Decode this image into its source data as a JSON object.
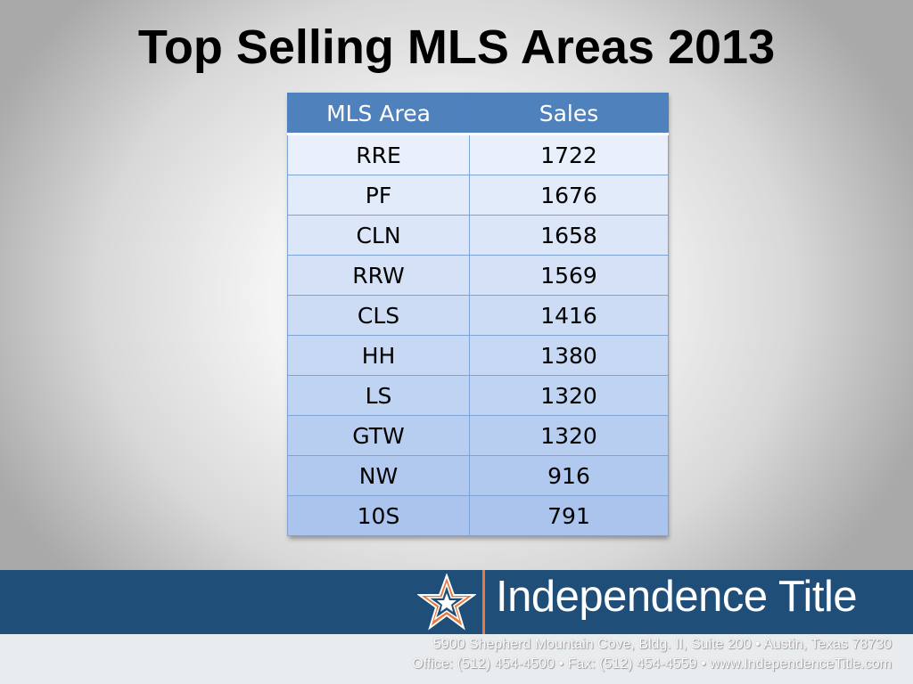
{
  "slide": {
    "title": "Top Selling MLS Areas 2013"
  },
  "table": {
    "headers": [
      "MLS Area",
      "Sales"
    ],
    "rows": [
      [
        "RRE",
        "1722"
      ],
      [
        "PF",
        "1676"
      ],
      [
        "CLN",
        "1658"
      ],
      [
        "RRW",
        "1569"
      ],
      [
        "CLS",
        "1416"
      ],
      [
        "HH",
        "1380"
      ],
      [
        "LS",
        "1320"
      ],
      [
        "GTW",
        "1320"
      ],
      [
        "NW",
        "916"
      ],
      [
        "10S",
        "791"
      ]
    ],
    "colors": {
      "header_bg": "#4f81bd",
      "header_text": "#ffffff",
      "row_gradient_top": "#e9f0fb",
      "row_gradient_bottom": "#aac4ee",
      "border": "#7fa3d4"
    }
  },
  "footer": {
    "brand": "Independence Title",
    "address_line1": "5900 Shepherd Mountain Cove, Bldg. II, Suite 200 • Austin, Texas 78730",
    "address_line2": "Office: (512) 454-4500  •  Fax: (512) 454-4559  •  www.IndependenceTitle.com",
    "logo_icon": "star-icon",
    "colors": {
      "bar": "#1f4e79",
      "accent": "#e8793a"
    }
  }
}
